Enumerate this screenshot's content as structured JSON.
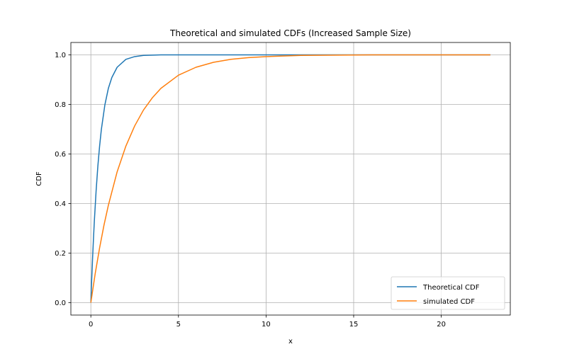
{
  "chart_data": {
    "type": "line",
    "title": "Theoretical and simulated CDFs (Increased Sample Size)",
    "xlabel": "x",
    "ylabel": "CDF",
    "xlim": [
      -1.14,
      23.94
    ],
    "ylim": [
      -0.05,
      1.05
    ],
    "xticks": [
      0,
      5,
      10,
      15,
      20
    ],
    "xtick_labels": [
      "0",
      "5",
      "10",
      "15",
      "20"
    ],
    "yticks": [
      0.0,
      0.2,
      0.4,
      0.6,
      0.8,
      1.0
    ],
    "ytick_labels": [
      "0.0",
      "0.2",
      "0.4",
      "0.6",
      "0.8",
      "1.0"
    ],
    "grid": true,
    "legend_position": "lower-right",
    "series": [
      {
        "name": "Theoretical CDF",
        "color": "#1f77b4",
        "x": [
          0,
          0.05,
          0.1,
          0.15,
          0.2,
          0.3,
          0.4,
          0.5,
          0.6,
          0.8,
          1.0,
          1.2,
          1.5,
          2.0,
          2.5,
          3.0,
          3.5,
          4.0,
          5.0,
          6.0,
          8.0,
          10.0,
          15.0,
          20.0,
          22.8
        ],
        "y": [
          0.0,
          0.095,
          0.181,
          0.259,
          0.33,
          0.451,
          0.551,
          0.632,
          0.699,
          0.798,
          0.865,
          0.909,
          0.95,
          0.982,
          0.993,
          0.998,
          0.999,
          1.0,
          1.0,
          1.0,
          1.0,
          1.0,
          1.0,
          1.0,
          1.0
        ]
      },
      {
        "name": "simulated CDF",
        "color": "#ff7f0e",
        "x": [
          0,
          0.25,
          0.5,
          0.75,
          1.0,
          1.5,
          2.0,
          2.5,
          3.0,
          3.5,
          4.0,
          5.0,
          6.0,
          7.0,
          8.0,
          9.0,
          10.0,
          12.0,
          14.0,
          16.0,
          18.0,
          20.0,
          22.8
        ],
        "y": [
          0.0,
          0.118,
          0.221,
          0.313,
          0.393,
          0.528,
          0.632,
          0.713,
          0.777,
          0.826,
          0.865,
          0.918,
          0.95,
          0.97,
          0.982,
          0.989,
          0.993,
          0.998,
          0.999,
          1.0,
          1.0,
          1.0,
          1.0
        ]
      }
    ]
  }
}
